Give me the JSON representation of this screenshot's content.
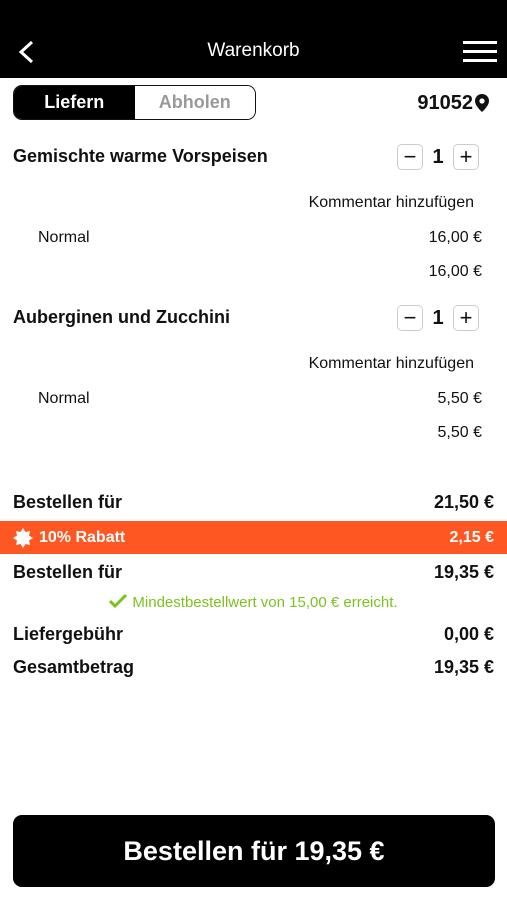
{
  "header": {
    "title": "Warenkorb"
  },
  "delivery_toggle": {
    "options": [
      "Liefern",
      "Abholen"
    ],
    "selected": 0
  },
  "postcode": "91052",
  "items": [
    {
      "name": "Gemischte warme Vorspeisen",
      "quantity": 1,
      "comment_link": "Kommentar hinzufügen",
      "variant": "Normal",
      "variant_price": "16,00 €",
      "item_total": "16,00 €"
    },
    {
      "name": "Auberginen und Zucchini",
      "quantity": 1,
      "comment_link": "Kommentar hinzufügen",
      "variant": "Normal",
      "variant_price": "5,50 €",
      "item_total": "5,50 €"
    }
  ],
  "summary": {
    "subtotal": {
      "label": "Bestellen für",
      "value": "21,50 €"
    },
    "discount": {
      "label": "10% Rabatt",
      "value": "2,15 €"
    },
    "after_discount": {
      "label": "Bestellen für",
      "value": "19,35 €"
    },
    "minimum_notice": "Mindestbestellwert von 15,00 € erreicht.",
    "delivery_fee": {
      "label": "Liefergebühr",
      "value": "0,00 €"
    },
    "total": {
      "label": "Gesamtbetrag",
      "value": "19,35 €"
    }
  },
  "order_button": "Bestellen für 19,35 €"
}
